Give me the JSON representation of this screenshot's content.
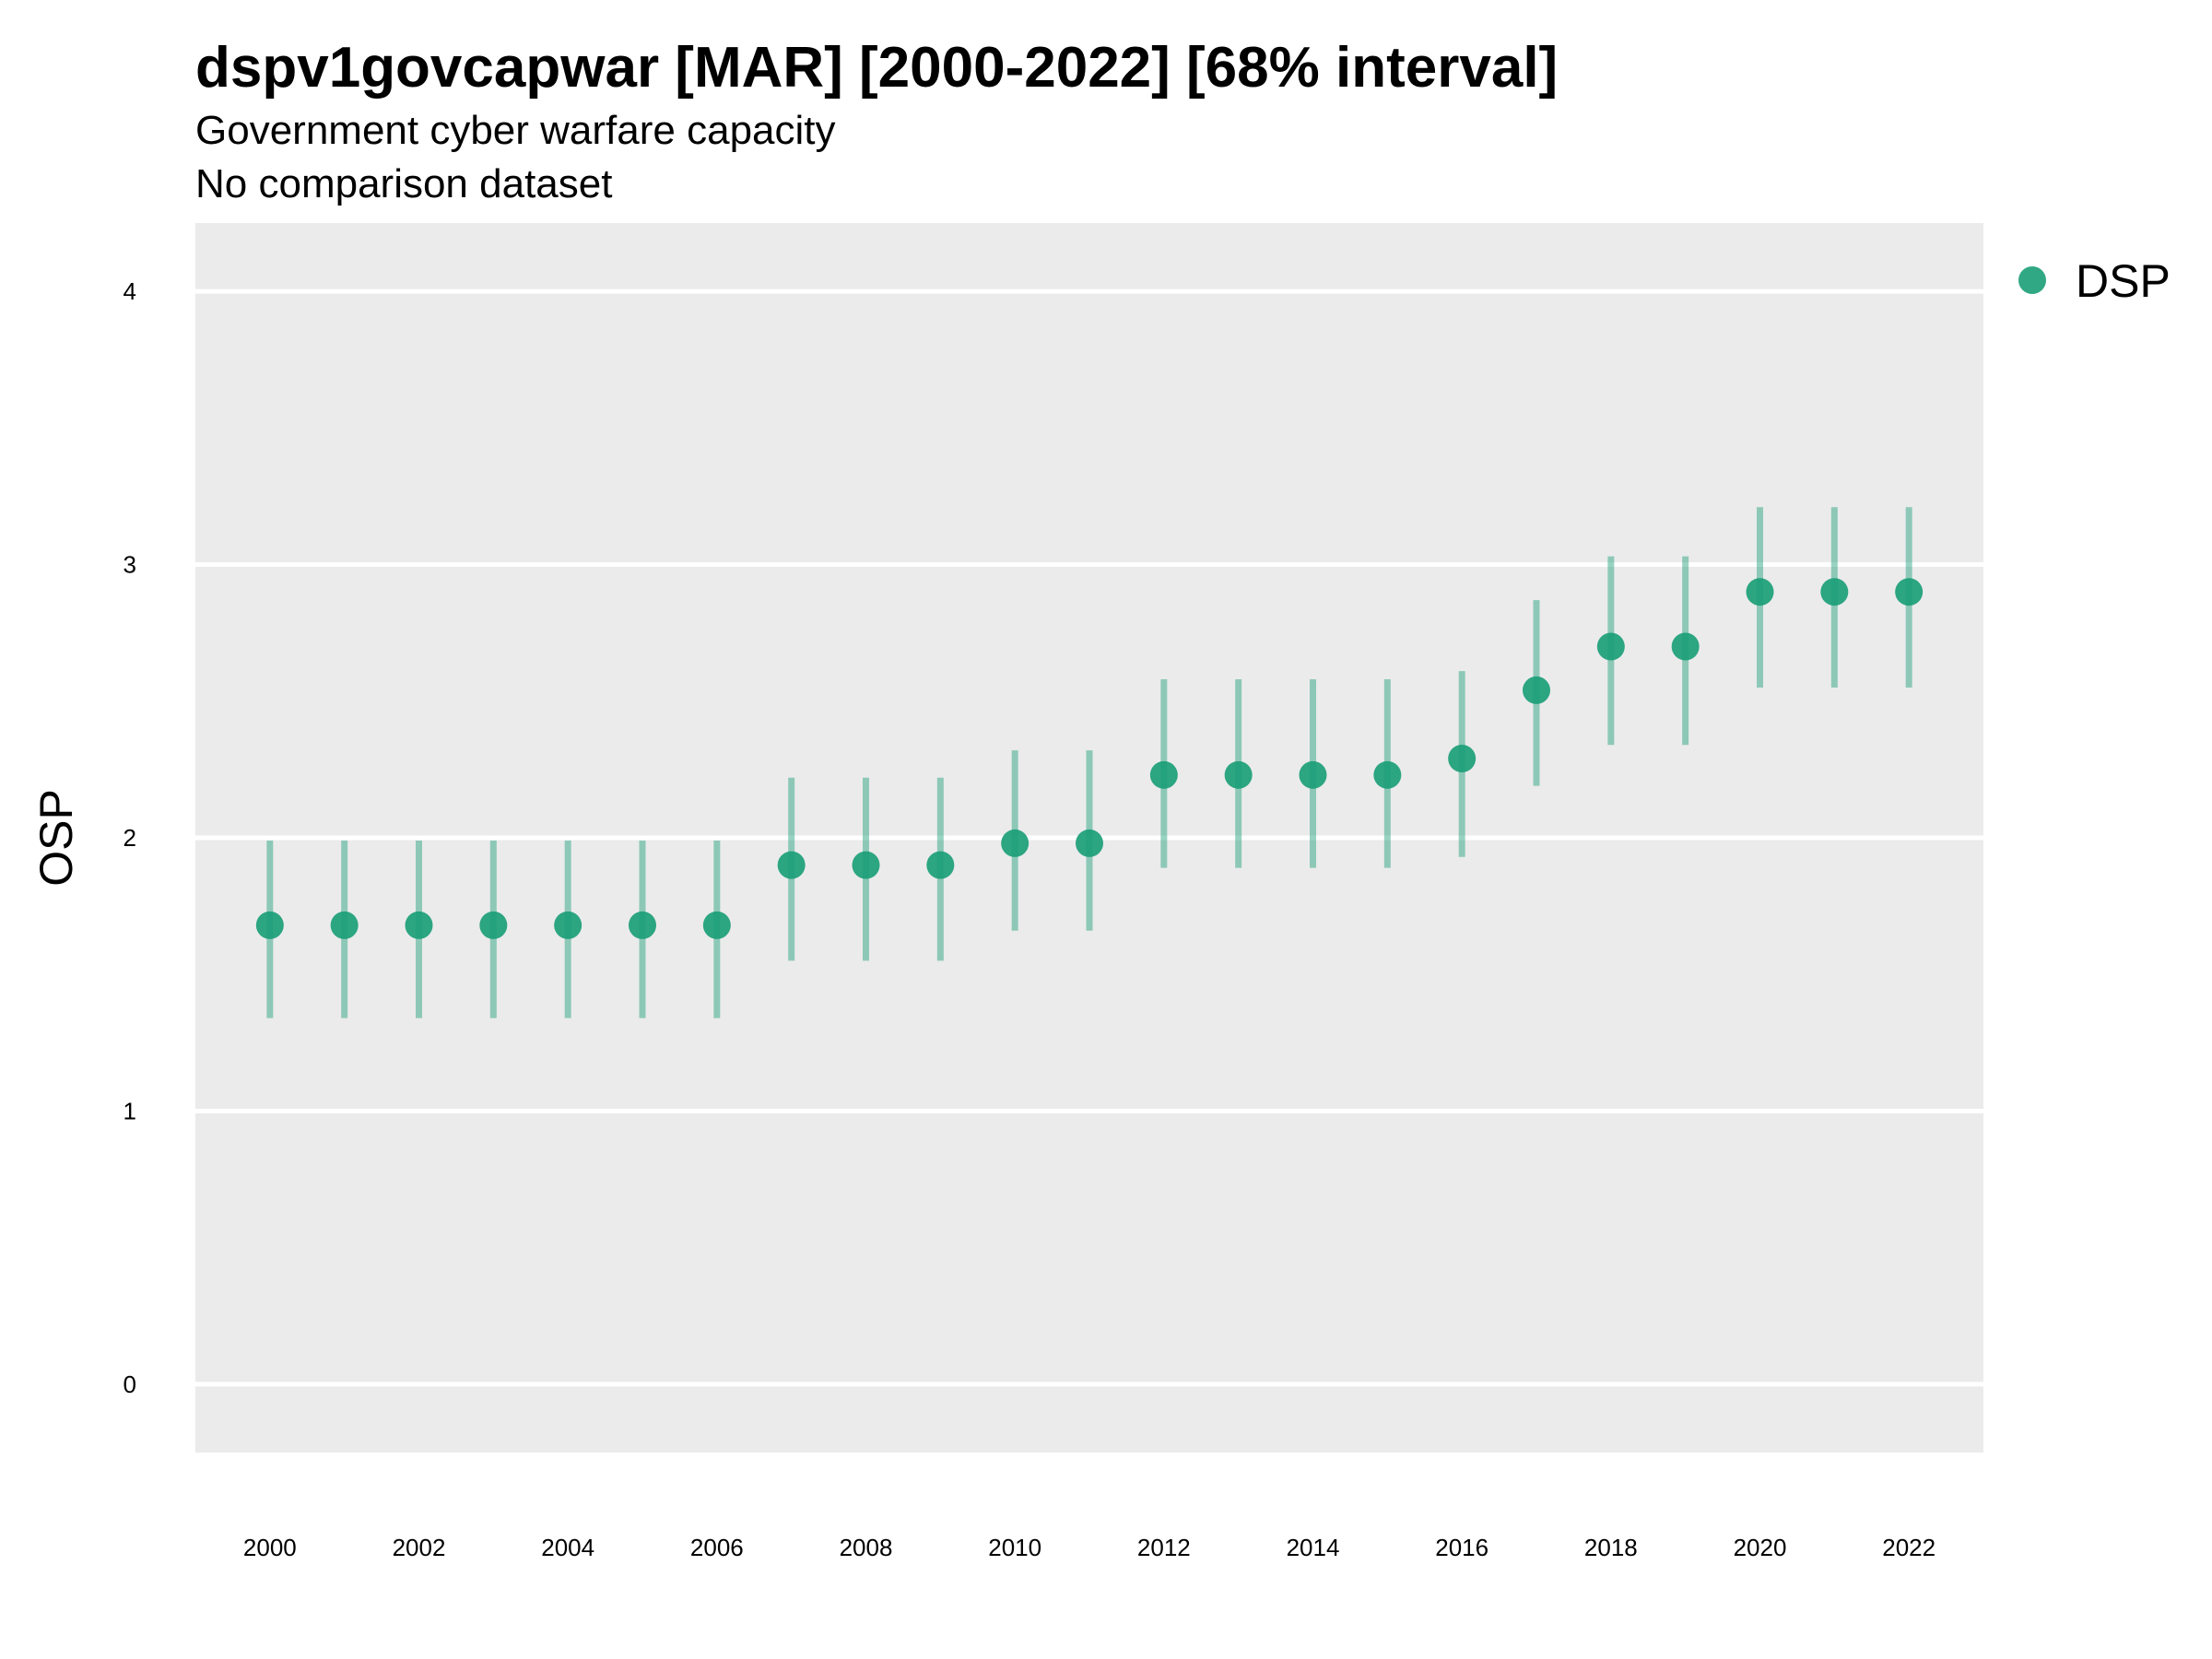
{
  "chart_data": {
    "type": "scatter",
    "title": "dspv1govcapwar [MAR] [2000-2022] [68% interval]",
    "subtitle": "Government cyber warfare capacity",
    "subtitle2": "No comparison dataset",
    "xlabel": "",
    "ylabel": "OSP",
    "xlim": [
      1999,
      2023
    ],
    "ylim": [
      -0.25,
      4.25
    ],
    "x_ticks": [
      2000,
      2002,
      2004,
      2006,
      2008,
      2010,
      2012,
      2014,
      2016,
      2018,
      2020,
      2022
    ],
    "y_ticks": [
      0,
      1,
      2,
      3,
      4
    ],
    "grid": true,
    "legend_position": "right",
    "series": [
      {
        "name": "DSP",
        "color": "#1b9e77",
        "x": [
          2000,
          2001,
          2002,
          2003,
          2004,
          2005,
          2006,
          2007,
          2008,
          2009,
          2010,
          2011,
          2012,
          2013,
          2014,
          2015,
          2016,
          2017,
          2018,
          2019,
          2020,
          2021,
          2022
        ],
        "y": [
          1.68,
          1.68,
          1.68,
          1.68,
          1.68,
          1.68,
          1.68,
          1.9,
          1.9,
          1.9,
          1.98,
          1.98,
          2.23,
          2.23,
          2.23,
          2.23,
          2.29,
          2.54,
          2.7,
          2.7,
          2.9,
          2.9,
          2.9
        ],
        "lower": [
          1.34,
          1.34,
          1.34,
          1.34,
          1.34,
          1.34,
          1.34,
          1.55,
          1.55,
          1.55,
          1.66,
          1.66,
          1.89,
          1.89,
          1.89,
          1.89,
          1.93,
          2.19,
          2.34,
          2.34,
          2.55,
          2.55,
          2.55
        ],
        "upper": [
          1.99,
          1.99,
          1.99,
          1.99,
          1.99,
          1.99,
          1.99,
          2.22,
          2.22,
          2.22,
          2.32,
          2.32,
          2.58,
          2.58,
          2.58,
          2.58,
          2.61,
          2.87,
          3.03,
          3.03,
          3.21,
          3.21,
          3.21
        ]
      }
    ]
  }
}
